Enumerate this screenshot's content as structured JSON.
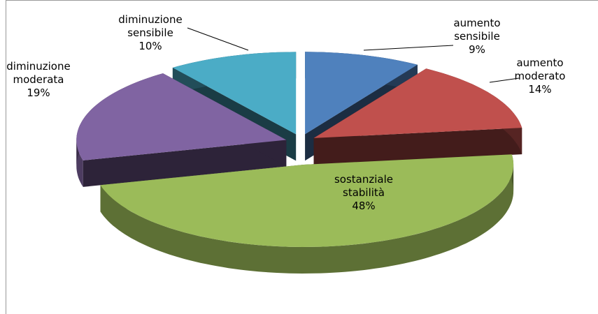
{
  "chart_data": {
    "type": "pie3d",
    "categories": [
      "aumento sensibile",
      "aumento moderato",
      "sostanziale stabilità",
      "diminuzione moderata",
      "diminuzione sensibile"
    ],
    "values": [
      9,
      14,
      48,
      19,
      10
    ],
    "value_labels": [
      "9%",
      "14%",
      "48%",
      "19%",
      "10%"
    ],
    "colors": [
      "#4f81bd",
      "#c0504d",
      "#9bbb59",
      "#8064a2",
      "#4bacc6"
    ]
  }
}
